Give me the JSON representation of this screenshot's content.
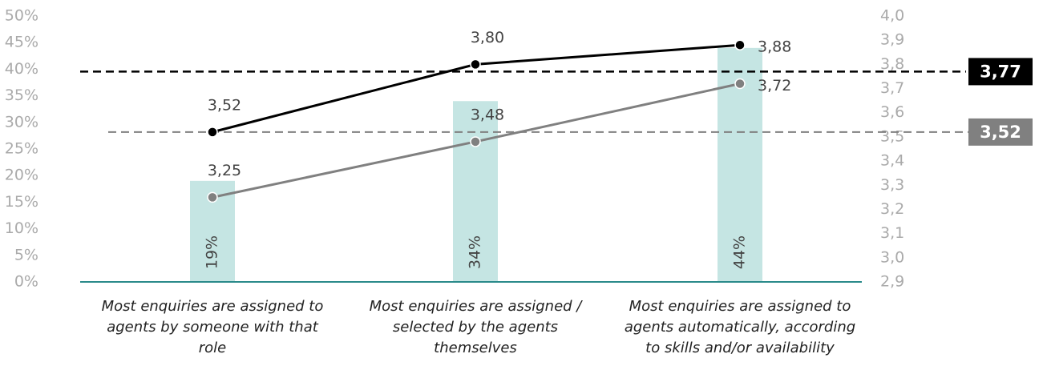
{
  "chart_data": {
    "type": "bar-line",
    "categories": [
      "Most enquiries are assigned to agents by someone with that role",
      "Most enquiries are assigned / selected by the agents themselves",
      "Most enquiries are assigned to agents automatically, according to skills and/or availability"
    ],
    "values": [
      19,
      34,
      44
    ],
    "value_labels": [
      "19%",
      "34%",
      "44%"
    ],
    "color": "#c5e5e3",
    "series": [
      {
        "color": "#000000",
        "axis": "y2",
        "values": [
          3.52,
          3.8,
          3.88
        ],
        "value_labels": [
          "3,52",
          "3,80",
          "3,88"
        ]
      },
      {
        "color": "#808080",
        "axis": "y2",
        "values": [
          3.25,
          3.48,
          3.72
        ],
        "value_labels": [
          "3,25",
          "3,48",
          "3,72"
        ]
      }
    ],
    "reference_lines": [
      {
        "value": 3.77,
        "label": "3,77",
        "color": "#000000"
      },
      {
        "value": 3.52,
        "label": "3,52",
        "color": "#808080"
      }
    ],
    "ylim": [
      0,
      50
    ],
    "yticks": [
      {
        "value": 0,
        "label": "0%"
      },
      {
        "value": 5,
        "label": "5%"
      },
      {
        "value": 10,
        "label": "10%"
      },
      {
        "value": 15,
        "label": "15%"
      },
      {
        "value": 20,
        "label": "20%"
      },
      {
        "value": 25,
        "label": "25%"
      },
      {
        "value": 30,
        "label": "30%"
      },
      {
        "value": 35,
        "label": "35%"
      },
      {
        "value": 40,
        "label": "40%"
      },
      {
        "value": 45,
        "label": "45%"
      },
      {
        "value": 50,
        "label": "50%"
      }
    ],
    "y2lim": [
      2.9,
      4.0
    ],
    "y2ticks": [
      {
        "value": 2.9,
        "label": "2,9"
      },
      {
        "value": 3.0,
        "label": "3,0"
      },
      {
        "value": 3.1,
        "label": "3,1"
      },
      {
        "value": 3.2,
        "label": "3,2"
      },
      {
        "value": 3.3,
        "label": "3,3"
      },
      {
        "value": 3.4,
        "label": "3,4"
      },
      {
        "value": 3.5,
        "label": "3,5"
      },
      {
        "value": 3.6,
        "label": "3,6"
      },
      {
        "value": 3.7,
        "label": "3,7"
      },
      {
        "value": 3.8,
        "label": "3,8"
      },
      {
        "value": 3.9,
        "label": "3,9"
      },
      {
        "value": 4.0,
        "label": "4,0"
      }
    ]
  }
}
